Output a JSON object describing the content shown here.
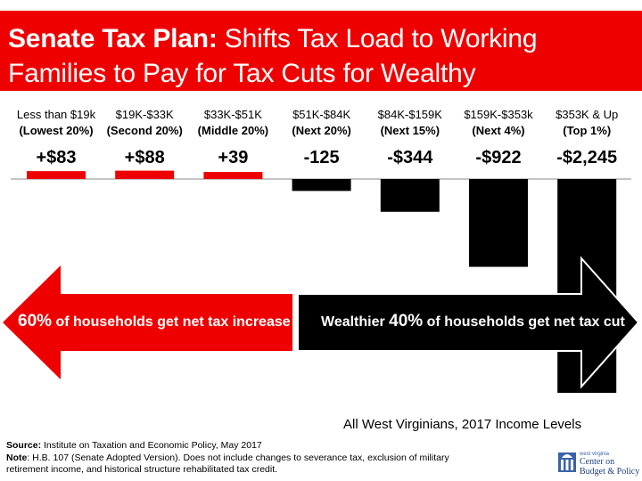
{
  "title": {
    "bold": "Senate Tax Plan:",
    "rest1": " Shifts Tax Load to Working",
    "line2": "Families to Pay for Tax Cuts for Wealthy"
  },
  "chart_data": {
    "type": "bar",
    "categories": [
      "Less than $19k",
      "$19K-$33K",
      "$33K-$51K",
      "$51K-$84K",
      "$84K-$159K",
      "$159K-$353k",
      "$353K & Up"
    ],
    "groups": [
      "(Lowest 20%)",
      "(Second 20%)",
      "(Middle 20%)",
      "(Next 20%)",
      "(Next 15%)",
      "(Next 4%)",
      "(Top 1%)"
    ],
    "values": [
      83,
      88,
      39,
      -125,
      -344,
      -922,
      -2245
    ],
    "value_labels": [
      "+$83",
      "+$88",
      "+39",
      "-125",
      "-$344",
      "-$922",
      "-$2,245"
    ],
    "colors": {
      "positive": "#ee0000",
      "negative": "#000000"
    }
  },
  "arrows": {
    "left": {
      "pct": "60%",
      "text": " of households get net tax increase",
      "color": "#ee0000"
    },
    "right": {
      "prefix": "Wealthier ",
      "pct": "40%",
      "text": " of households get net tax cut",
      "color": "#000000"
    }
  },
  "subtitle": "All West Virginians, 2017 Income Levels",
  "source": {
    "label": "Source:",
    "text": " Institute on Taxation and Economic Policy, May 2017"
  },
  "note": {
    "label": "Note",
    "text1": ": H.B. 107 (Senate Adopted Version). Does not include changes to severance tax, exclusion of military",
    "text2": "retirement income, and historical structure rehabilitated tax credit."
  },
  "logo": {
    "line1": "west virginia",
    "line2": "Center on",
    "line3": "Budget & Policy"
  }
}
